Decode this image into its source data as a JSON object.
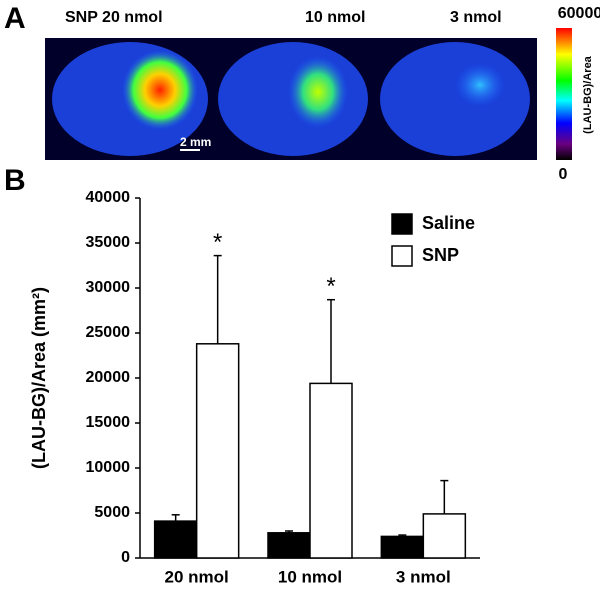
{
  "panel_a": {
    "label": "A",
    "images": [
      "SNP  20 nmol",
      "10 nmol",
      "3 nmol"
    ],
    "scale_bar": "2 mm",
    "colorbar": {
      "label": "(LAU-BG)/Area",
      "max": 60000,
      "min": 0
    }
  },
  "chart_data": {
    "type": "bar",
    "panel_label": "B",
    "ylabel": "(LAU-BG)/Area (mm²)",
    "categories": [
      "20 nmol",
      "10 nmol",
      "3 nmol"
    ],
    "series": [
      {
        "name": "Saline",
        "color": "#000000",
        "values": [
          4100,
          2800,
          2400
        ],
        "errors": [
          700,
          200,
          150
        ]
      },
      {
        "name": "SNP",
        "color": "#ffffff",
        "values": [
          23800,
          19400,
          4900
        ],
        "errors": [
          9800,
          9300,
          3700
        ]
      }
    ],
    "significance": [
      "*",
      "*",
      null
    ],
    "ylim": [
      0,
      40000
    ],
    "yticks": [
      0,
      5000,
      10000,
      15000,
      20000,
      25000,
      30000,
      35000,
      40000
    ],
    "legend": "top-right"
  }
}
